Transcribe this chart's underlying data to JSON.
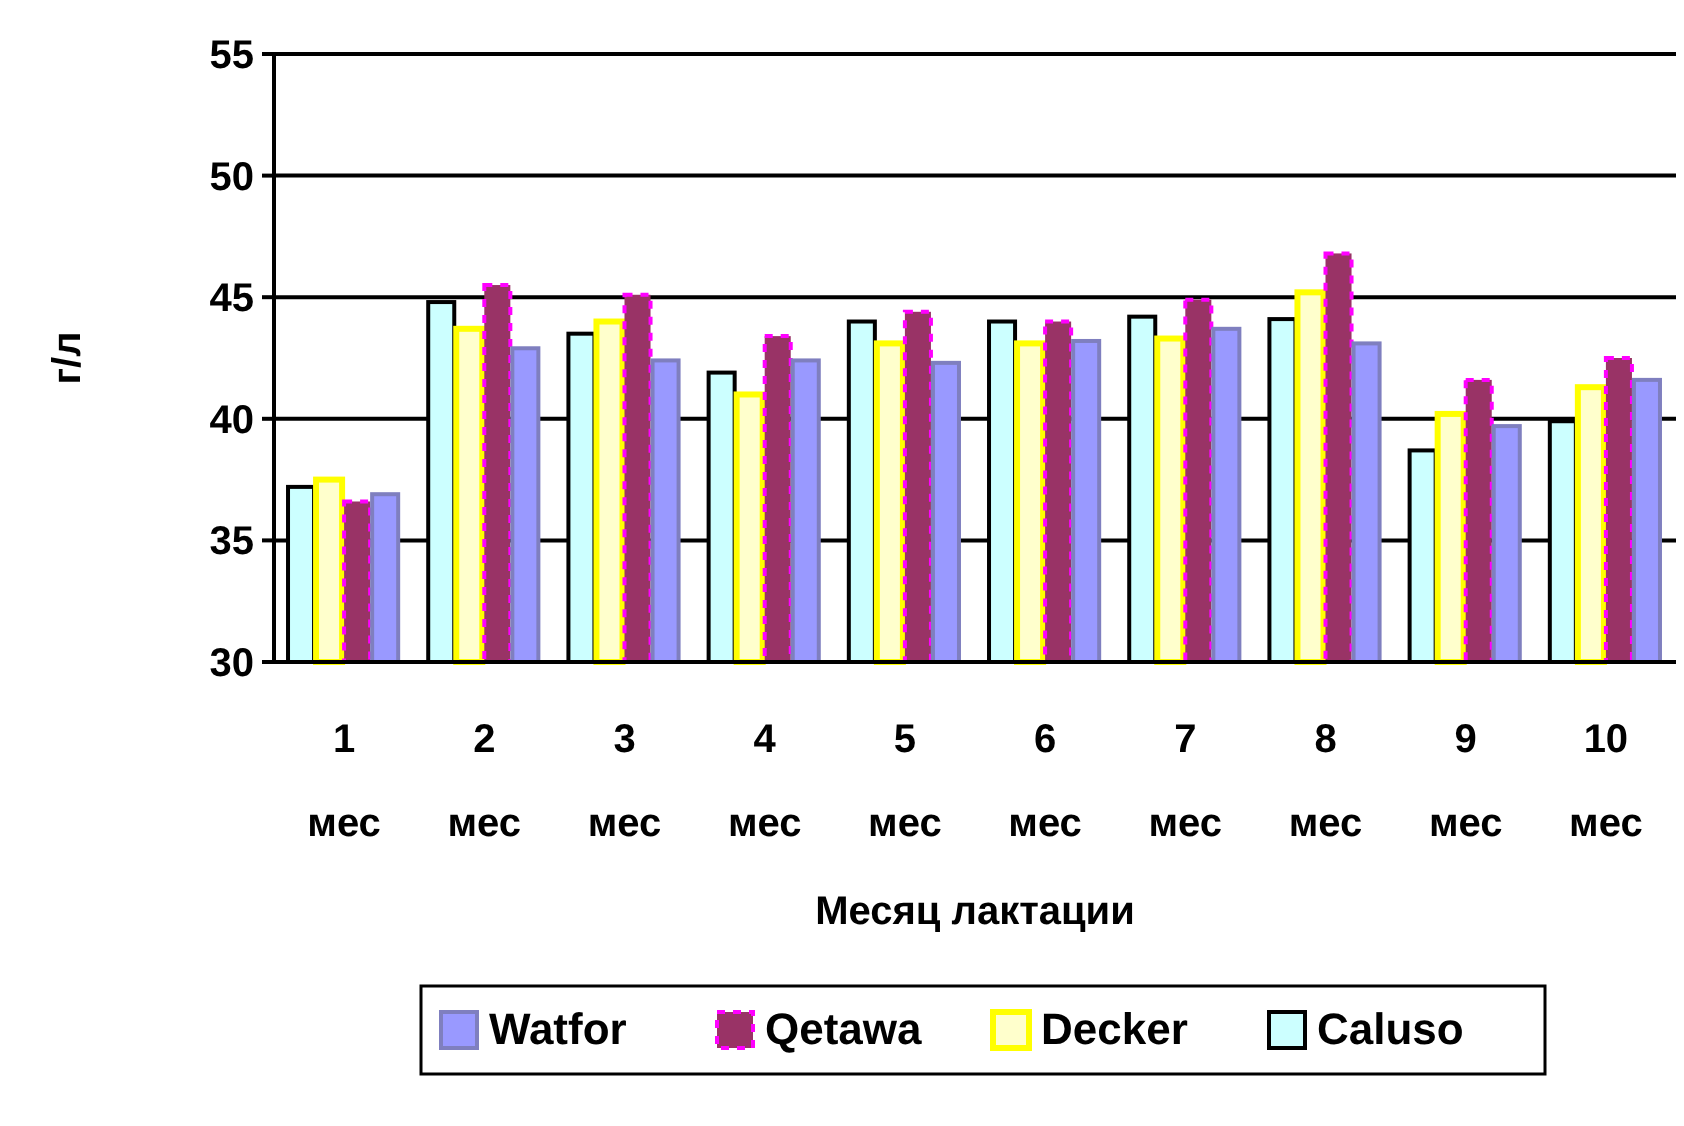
{
  "chart_data": {
    "type": "bar",
    "xlabel": "Месяц лактации",
    "ylabel": "г/л",
    "categories": [
      "1 мес",
      "2 мес",
      "3 мес",
      "4 мес",
      "5 мес",
      "6 мес",
      "7 мес",
      "8 мес",
      "9 мес",
      "10 мес"
    ],
    "series": [
      {
        "name": "Caluso",
        "color": "#ccffff",
        "values": [
          37.2,
          44.8,
          43.5,
          41.9,
          44.0,
          44.0,
          44.2,
          44.1,
          38.7,
          39.9
        ]
      },
      {
        "name": "Decker",
        "color": "#ffffcc",
        "values": [
          37.5,
          43.7,
          44.0,
          41.0,
          43.1,
          43.1,
          43.3,
          45.2,
          40.2,
          41.3
        ]
      },
      {
        "name": "Qetawa",
        "color": "#993366",
        "values": [
          36.6,
          45.5,
          45.1,
          43.4,
          44.4,
          44.0,
          44.9,
          46.8,
          41.6,
          42.5
        ]
      },
      {
        "name": "Watfor",
        "color": "#9999ff",
        "values": [
          36.9,
          42.9,
          42.4,
          42.4,
          42.3,
          43.2,
          43.7,
          43.1,
          39.7,
          41.6
        ]
      }
    ],
    "ylim": [
      30,
      55
    ],
    "yticks": [
      30,
      35,
      40,
      45,
      50,
      55
    ],
    "grid": "y",
    "legend": "bottom"
  }
}
